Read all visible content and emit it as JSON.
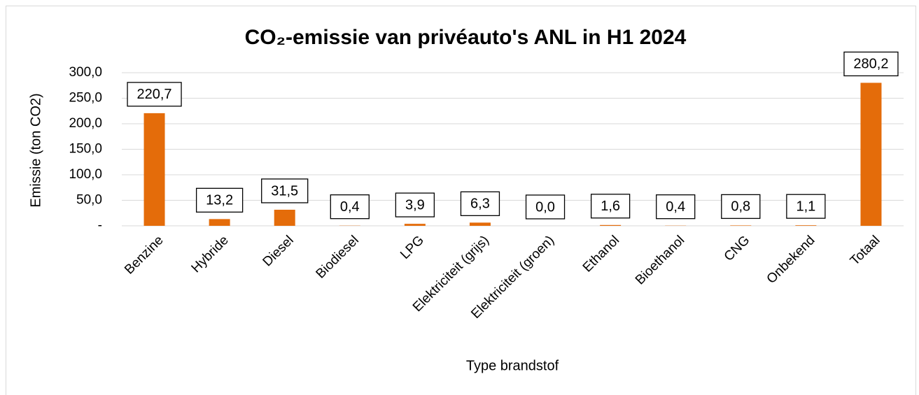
{
  "chart_data": {
    "type": "bar",
    "title": "CO₂-emissie van privéauto's ANL in H1 2024",
    "y_axis_label": "Emissie (ton CO2)",
    "x_axis_label": "Type brandstof",
    "categories": [
      "Benzine",
      "Hybride",
      "Diesel",
      "Biodiesel",
      "LPG",
      "Elektriciteit (grijs)",
      "Elektriciteit (groen)",
      "Ethanol",
      "Bioethanol",
      "CNG",
      "Onbekend",
      "Totaal"
    ],
    "values": [
      220.7,
      13.2,
      31.5,
      0.4,
      3.9,
      6.3,
      0.0,
      1.6,
      0.4,
      0.8,
      1.1,
      280.2
    ],
    "value_labels": [
      "220,7",
      "13,2",
      "31,5",
      "0,4",
      "3,9",
      "6,3",
      "0,0",
      "1,6",
      "0,4",
      "0,8",
      "1,1",
      "280,2"
    ],
    "color": "#e46c0a",
    "ylim": [
      0,
      300
    ],
    "yticks": [
      {
        "value": 0,
        "label": "-"
      },
      {
        "value": 50,
        "label": "50,0"
      },
      {
        "value": 100,
        "label": "100,0"
      },
      {
        "value": 150,
        "label": "150,0"
      },
      {
        "value": 200,
        "label": "200,0"
      },
      {
        "value": 250,
        "label": "250,0"
      },
      {
        "value": 300,
        "label": "300,0"
      }
    ],
    "grid": true
  }
}
